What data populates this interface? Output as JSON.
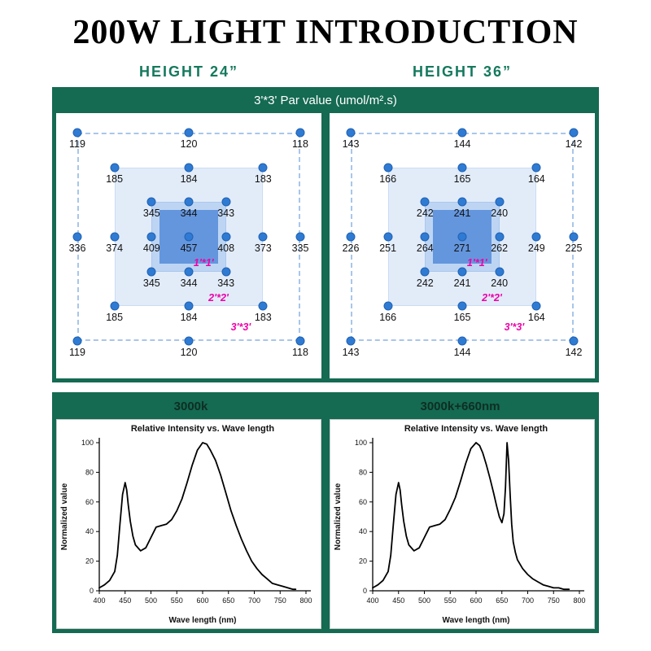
{
  "page_title": "200W LIGHT INTRODUCTION",
  "height_labels": [
    "HEIGHT  24”",
    "HEIGHT  36”"
  ],
  "par_panel": {
    "title": "3'*3' Par value (umol/m².s)",
    "ring_labels": [
      "1'*1'",
      "2'*2'",
      "3'*3'"
    ],
    "colors": {
      "panel_green": "#156a52",
      "dot": "#2f7bd3",
      "zone_light": "#e2ecf9",
      "zone_mid": "#bdd5f3",
      "zone_dark": "#6496de",
      "ring_label": "#ee00a8"
    },
    "grids": [
      {
        "name": "height-24",
        "rows": [
          [
            119,
            120,
            118
          ],
          [
            185,
            184,
            183
          ],
          [
            345,
            344,
            343
          ],
          [
            336,
            374,
            409,
            457,
            408,
            373,
            335
          ],
          [
            345,
            344,
            343
          ],
          [
            185,
            184,
            183
          ],
          [
            119,
            120,
            118
          ]
        ]
      },
      {
        "name": "height-36",
        "rows": [
          [
            143,
            144,
            142
          ],
          [
            166,
            165,
            164
          ],
          [
            242,
            241,
            240
          ],
          [
            226,
            251,
            264,
            271,
            262,
            249,
            225
          ],
          [
            242,
            241,
            240
          ],
          [
            166,
            165,
            164
          ],
          [
            143,
            144,
            142
          ]
        ]
      }
    ]
  },
  "spectrum_panel": {
    "labels": [
      "3000k",
      "3000k+660nm"
    ]
  },
  "chart_data": [
    {
      "type": "line",
      "panel_label": "3000k",
      "title": "Relative Intensity vs. Wave length",
      "xlabel": "Wave length (nm)",
      "ylabel": "Normalized value",
      "xlim": [
        400,
        800
      ],
      "ylim": [
        0,
        100
      ],
      "xticks": [
        400,
        450,
        500,
        550,
        600,
        650,
        700,
        750,
        800
      ],
      "yticks": [
        0,
        20,
        40,
        60,
        80,
        100
      ],
      "grid": false,
      "series": [
        {
          "name": "3000k",
          "points": [
            [
              400,
              2
            ],
            [
              410,
              4
            ],
            [
              420,
              7
            ],
            [
              430,
              13
            ],
            [
              435,
              24
            ],
            [
              440,
              45
            ],
            [
              445,
              65
            ],
            [
              450,
              73
            ],
            [
              453,
              68
            ],
            [
              456,
              58
            ],
            [
              460,
              47
            ],
            [
              465,
              37
            ],
            [
              470,
              31
            ],
            [
              480,
              27
            ],
            [
              490,
              29
            ],
            [
              500,
              36
            ],
            [
              510,
              43
            ],
            [
              520,
              44
            ],
            [
              530,
              45
            ],
            [
              540,
              48
            ],
            [
              550,
              54
            ],
            [
              560,
              62
            ],
            [
              570,
              73
            ],
            [
              580,
              85
            ],
            [
              590,
              95
            ],
            [
              600,
              100
            ],
            [
              608,
              99
            ],
            [
              615,
              95
            ],
            [
              625,
              88
            ],
            [
              635,
              78
            ],
            [
              645,
              66
            ],
            [
              655,
              54
            ],
            [
              665,
              44
            ],
            [
              675,
              35
            ],
            [
              685,
              27
            ],
            [
              695,
              20
            ],
            [
              705,
              15
            ],
            [
              715,
              11
            ],
            [
              725,
              8
            ],
            [
              735,
              5
            ],
            [
              745,
              4
            ],
            [
              755,
              3
            ],
            [
              765,
              2
            ],
            [
              775,
              1
            ],
            [
              780,
              1
            ]
          ]
        }
      ]
    },
    {
      "type": "line",
      "panel_label": "3000k+660nm",
      "title": "Relative Intensity vs. Wave length",
      "xlabel": "Wave length (nm)",
      "ylabel": "Normalized value",
      "xlim": [
        400,
        800
      ],
      "ylim": [
        0,
        100
      ],
      "xticks": [
        400,
        450,
        500,
        550,
        600,
        650,
        700,
        750,
        800
      ],
      "yticks": [
        0,
        20,
        40,
        60,
        80,
        100
      ],
      "grid": false,
      "series": [
        {
          "name": "3000k+660nm",
          "points": [
            [
              400,
              2
            ],
            [
              410,
              4
            ],
            [
              420,
              7
            ],
            [
              430,
              13
            ],
            [
              435,
              24
            ],
            [
              440,
              45
            ],
            [
              445,
              65
            ],
            [
              450,
              73
            ],
            [
              453,
              68
            ],
            [
              456,
              58
            ],
            [
              460,
              47
            ],
            [
              465,
              37
            ],
            [
              470,
              31
            ],
            [
              480,
              27
            ],
            [
              490,
              29
            ],
            [
              500,
              36
            ],
            [
              510,
              43
            ],
            [
              520,
              44
            ],
            [
              530,
              45
            ],
            [
              540,
              48
            ],
            [
              550,
              55
            ],
            [
              560,
              63
            ],
            [
              570,
              74
            ],
            [
              580,
              86
            ],
            [
              590,
              96
            ],
            [
              600,
              100
            ],
            [
              607,
              98
            ],
            [
              613,
              93
            ],
            [
              620,
              85
            ],
            [
              627,
              76
            ],
            [
              634,
              66
            ],
            [
              640,
              57
            ],
            [
              645,
              50
            ],
            [
              650,
              46
            ],
            [
              654,
              52
            ],
            [
              657,
              70
            ],
            [
              660,
              100
            ],
            [
              663,
              88
            ],
            [
              666,
              65
            ],
            [
              669,
              45
            ],
            [
              672,
              33
            ],
            [
              676,
              26
            ],
            [
              680,
              21
            ],
            [
              690,
              15
            ],
            [
              700,
              11
            ],
            [
              710,
              8
            ],
            [
              720,
              6
            ],
            [
              730,
              4
            ],
            [
              740,
              3
            ],
            [
              750,
              2
            ],
            [
              760,
              2
            ],
            [
              770,
              1
            ],
            [
              780,
              1
            ]
          ]
        }
      ]
    }
  ]
}
